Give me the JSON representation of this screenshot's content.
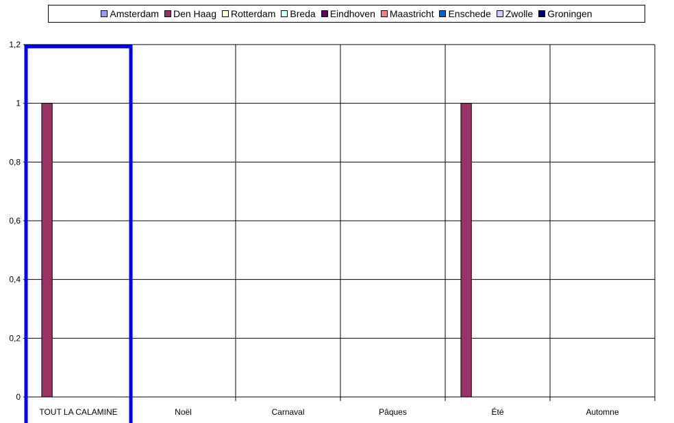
{
  "chart_data": {
    "type": "bar",
    "title": "",
    "xlabel": "",
    "ylabel": "",
    "categories": [
      "TOUT LA CALAMINE",
      "Noël",
      "Carnaval",
      "Pâques",
      "Été",
      "Automne"
    ],
    "series": [
      {
        "name": "Amsterdam",
        "color": "#9999ff",
        "values": [
          0,
          0,
          0,
          0,
          0,
          0
        ]
      },
      {
        "name": "Den Haag",
        "color": "#993366",
        "values": [
          1,
          0,
          0,
          0,
          1,
          0
        ]
      },
      {
        "name": "Rotterdam",
        "color": "#ffffcc",
        "values": [
          0,
          0,
          0,
          0,
          0,
          0
        ]
      },
      {
        "name": "Breda",
        "color": "#ccffff",
        "values": [
          0,
          0,
          0,
          0,
          0,
          0
        ]
      },
      {
        "name": "Eindhoven",
        "color": "#660066",
        "values": [
          0,
          0,
          0,
          0,
          0,
          0
        ]
      },
      {
        "name": "Maastricht",
        "color": "#ff8080",
        "values": [
          0,
          0,
          0,
          0,
          0,
          0
        ]
      },
      {
        "name": "Enschede",
        "color": "#0066cc",
        "values": [
          0,
          0,
          0,
          0,
          0,
          0
        ]
      },
      {
        "name": "Zwolle",
        "color": "#ccccff",
        "values": [
          0,
          0,
          0,
          0,
          0,
          0
        ]
      },
      {
        "name": "Groningen",
        "color": "#000080",
        "values": [
          0,
          0,
          0,
          0,
          0,
          0
        ]
      }
    ],
    "ylim": [
      0,
      1.2
    ],
    "yticks": [
      "0",
      "0,2",
      "0,4",
      "0,6",
      "0,8",
      "1",
      "1,2"
    ],
    "grid": true,
    "legend_position": "top",
    "highlight": {
      "category": "TOUT LA CALAMINE",
      "color": "#0000ff"
    }
  }
}
